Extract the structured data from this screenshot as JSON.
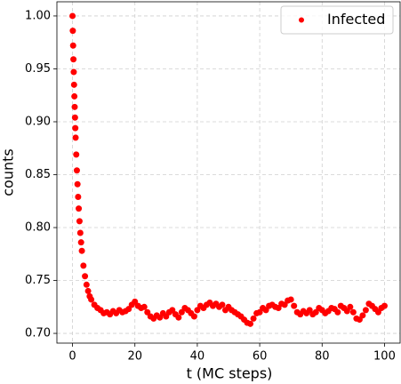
{
  "chart_data": {
    "type": "scatter",
    "xlabel": "t (MC steps)",
    "ylabel": "counts",
    "xlim": [
      -5,
      105
    ],
    "ylim": [
      0.6908,
      1.0134
    ],
    "xticks": [
      0,
      20,
      40,
      60,
      80,
      100
    ],
    "yticks": [
      {
        "value": 0.7,
        "label": "0.70"
      },
      {
        "value": 0.75,
        "label": "0.75"
      },
      {
        "value": 0.8,
        "label": "0.80"
      },
      {
        "value": 0.85,
        "label": "0.85"
      },
      {
        "value": 0.9,
        "label": "0.90"
      },
      {
        "value": 0.95,
        "label": "0.95"
      },
      {
        "value": 1.0,
        "label": "1.00"
      }
    ],
    "grid": true,
    "legend": "upper right",
    "series": [
      {
        "name": "Infected",
        "color": "#ff0000",
        "x": [
          0,
          0.1,
          0.2,
          0.3,
          0.4,
          0.5,
          0.6,
          0.7,
          0.8,
          0.9,
          1.0,
          1.2,
          1.4,
          1.6,
          1.8,
          2.0,
          2.25,
          2.5,
          2.75,
          3.0,
          3.5,
          4.0,
          4.5,
          5,
          5.5,
          6,
          7,
          8,
          9,
          10,
          11,
          12,
          13,
          14,
          15,
          16,
          17,
          18,
          19,
          20,
          21,
          22,
          23,
          24,
          25,
          26,
          27,
          28,
          29,
          30,
          31,
          32,
          33,
          34,
          35,
          36,
          37,
          38,
          39,
          40,
          41,
          42,
          43,
          44,
          45,
          46,
          47,
          48,
          49,
          50,
          51,
          52,
          53,
          54,
          55,
          56,
          57,
          58,
          59,
          60,
          61,
          62,
          63,
          64,
          65,
          66,
          67,
          68,
          69,
          70,
          71,
          72,
          73,
          74,
          75,
          76,
          77,
          78,
          79,
          80,
          81,
          82,
          83,
          84,
          85,
          86,
          87,
          88,
          89,
          90,
          91,
          92,
          93,
          94,
          95,
          96,
          97,
          98,
          99,
          100
        ],
        "values": [
          1.0,
          0.986,
          0.972,
          0.959,
          0.947,
          0.935,
          0.924,
          0.914,
          0.904,
          0.894,
          0.885,
          0.869,
          0.854,
          0.841,
          0.829,
          0.818,
          0.806,
          0.795,
          0.786,
          0.778,
          0.764,
          0.754,
          0.746,
          0.74,
          0.735,
          0.732,
          0.727,
          0.724,
          0.722,
          0.719,
          0.72,
          0.718,
          0.721,
          0.719,
          0.722,
          0.72,
          0.721,
          0.723,
          0.727,
          0.73,
          0.726,
          0.724,
          0.725,
          0.72,
          0.716,
          0.714,
          0.717,
          0.715,
          0.719,
          0.716,
          0.72,
          0.722,
          0.718,
          0.715,
          0.72,
          0.724,
          0.722,
          0.719,
          0.716,
          0.722,
          0.726,
          0.724,
          0.727,
          0.729,
          0.726,
          0.728,
          0.725,
          0.727,
          0.722,
          0.725,
          0.722,
          0.72,
          0.718,
          0.716,
          0.713,
          0.71,
          0.709,
          0.714,
          0.719,
          0.72,
          0.724,
          0.722,
          0.726,
          0.727,
          0.725,
          0.724,
          0.728,
          0.727,
          0.731,
          0.732,
          0.726,
          0.72,
          0.718,
          0.721,
          0.719,
          0.722,
          0.718,
          0.72,
          0.724,
          0.722,
          0.719,
          0.721,
          0.724,
          0.723,
          0.72,
          0.726,
          0.724,
          0.721,
          0.725,
          0.72,
          0.714,
          0.713,
          0.717,
          0.722,
          0.728,
          0.726,
          0.723,
          0.72,
          0.724,
          0.726
        ]
      }
    ]
  }
}
